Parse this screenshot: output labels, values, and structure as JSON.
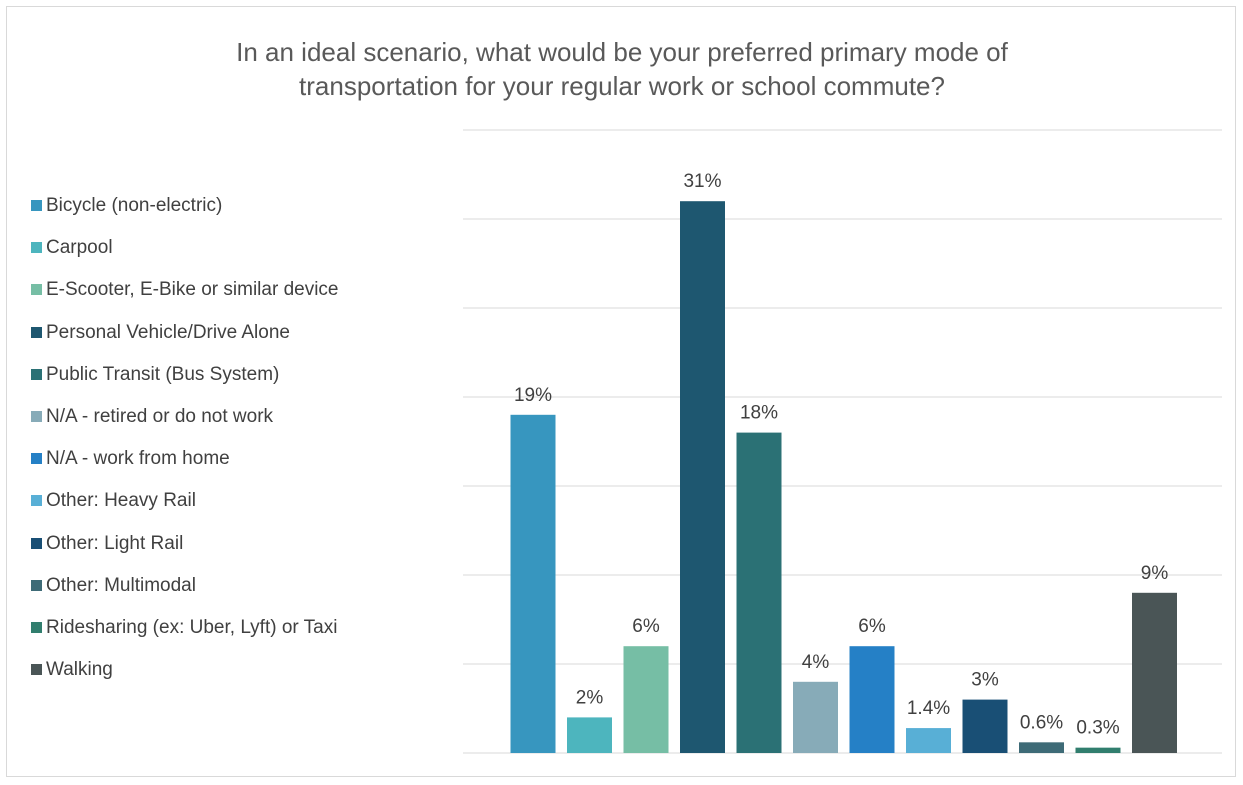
{
  "chart_data": {
    "type": "bar",
    "title": "In an ideal scenario, what would be your preferred primary mode of transportation for your regular work or school commute?",
    "xlabel": "",
    "ylabel": "",
    "ylim": [
      0,
      35
    ],
    "grid": true,
    "legend_position": "left",
    "categories": [
      "Bicycle (non-electric)",
      "Carpool",
      "E-Scooter, E-Bike or similar device",
      "Personal Vehicle/Drive Alone",
      "Public Transit (Bus System)",
      "N/A - retired or do not work",
      "N/A - work from home",
      "Other: Heavy Rail",
      "Other: Light Rail",
      "Other: Multimodal",
      "Ridesharing (ex: Uber, Lyft) or Taxi",
      "Walking"
    ],
    "values": [
      19,
      2,
      6,
      31,
      18,
      4,
      6,
      1.4,
      3,
      0.6,
      0.3,
      9
    ],
    "data_labels": [
      "19%",
      "2%",
      "6%",
      "31%",
      "18%",
      "4%",
      "6%",
      "1.4%",
      "3%",
      "0.6%",
      "0.3%",
      "9%"
    ],
    "colors": [
      "#3796bf",
      "#4db5be",
      "#76bea5",
      "#1e5770",
      "#2b7175",
      "#87abb8",
      "#2580c6",
      "#58afd6",
      "#194f75",
      "#3e6b77",
      "#317e6e",
      "#4a5556"
    ]
  }
}
